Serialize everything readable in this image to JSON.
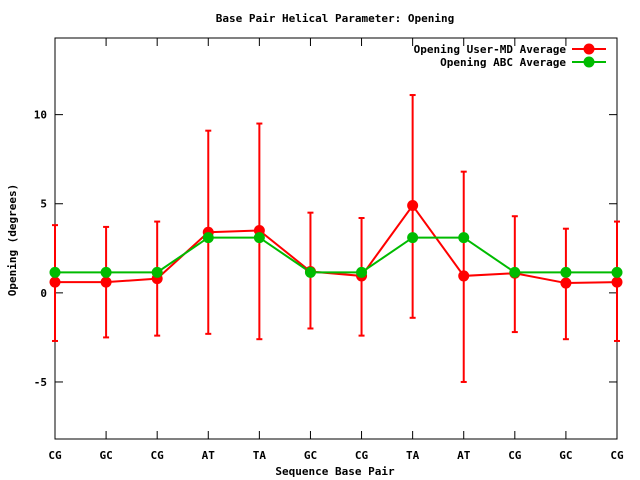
{
  "chart_data": {
    "type": "line",
    "title": "Base Pair Helical Parameter: Opening",
    "xlabel": "Sequence Base Pair",
    "ylabel": "Opening (degrees)",
    "categories": [
      "CG",
      "GC",
      "CG",
      "AT",
      "TA",
      "GC",
      "CG",
      "TA",
      "AT",
      "CG",
      "GC",
      "CG"
    ],
    "ylim": [
      -8.2,
      14.3
    ],
    "yticks": [
      -5,
      0,
      5,
      10
    ],
    "ytick_labels": [
      "-5",
      "0",
      "5",
      "10"
    ],
    "grid": false,
    "legend_position": "top-right",
    "series": [
      {
        "name": "Opening User-MD Average",
        "color": "#ff0000",
        "values": [
          0.6,
          0.6,
          0.8,
          3.4,
          3.5,
          1.2,
          0.95,
          4.9,
          0.95,
          1.1,
          0.55,
          0.6
        ],
        "error_low": [
          -2.7,
          -2.5,
          -2.4,
          -2.3,
          -2.6,
          -2.0,
          -2.4,
          -1.4,
          -5.0,
          -2.2,
          -2.6,
          -2.7
        ],
        "error_high": [
          3.8,
          3.7,
          4.0,
          9.1,
          9.5,
          4.5,
          4.2,
          11.1,
          6.8,
          4.3,
          3.6,
          4.0
        ]
      },
      {
        "name": "Opening ABC Average",
        "color": "#00bb00",
        "values": [
          1.15,
          1.15,
          1.15,
          3.1,
          3.1,
          1.15,
          1.15,
          3.1,
          3.1,
          1.15,
          1.15,
          1.15
        ]
      }
    ]
  }
}
